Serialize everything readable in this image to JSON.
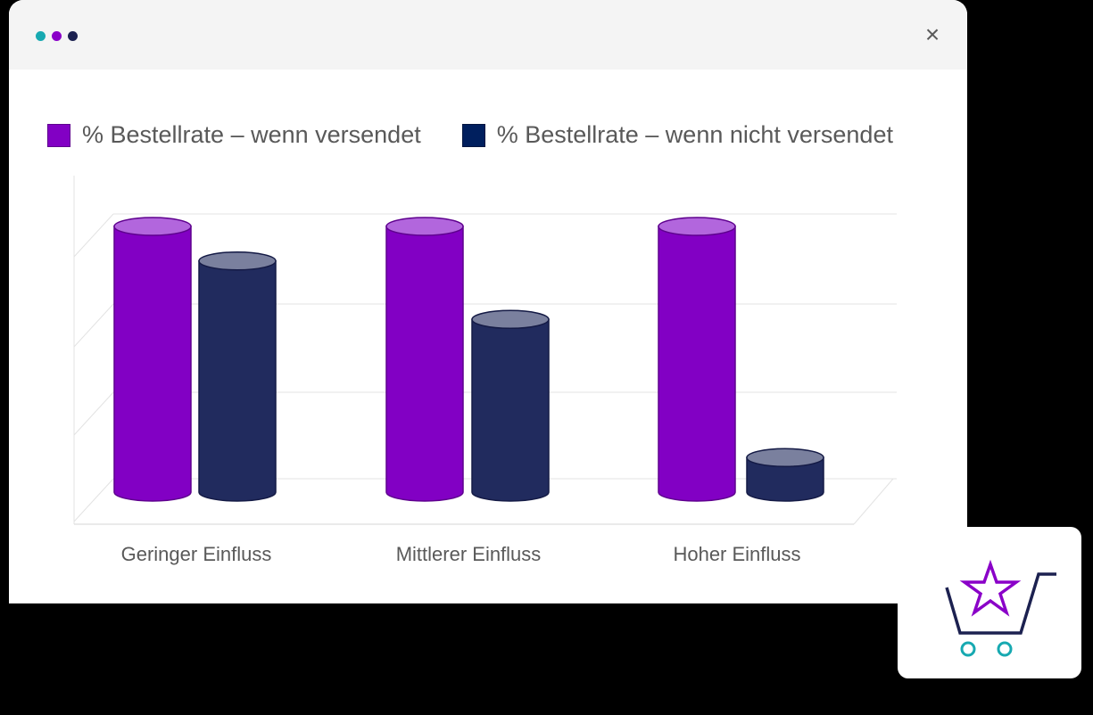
{
  "window": {
    "title_dots": [
      {
        "name": "teal-dot",
        "color": "#17a9b1"
      },
      {
        "name": "purple-dot",
        "color": "#8a00c8"
      },
      {
        "name": "navy-dot",
        "color": "#1c2150"
      }
    ],
    "close_icon": "×"
  },
  "legend": [
    {
      "label": "% Bestellrate – wenn versendet",
      "color": "#8200c4"
    },
    {
      "label": "% Bestellrate – wenn nicht versendet",
      "color": "#001f5e"
    }
  ],
  "chart_data": {
    "type": "bar",
    "style": "3d-cylinder",
    "title": "",
    "xlabel": "",
    "ylabel": "",
    "categories": [
      "Geringer Einfluss",
      "Mittlerer Einfluss",
      "Hoher Einfluss"
    ],
    "series": [
      {
        "name": "% Bestellrate – wenn versendet",
        "color": "#8200c4",
        "top_color": "#b266dd",
        "values": [
          100,
          100,
          100
        ]
      },
      {
        "name": "% Bestellrate – wenn nicht versendet",
        "color": "#212b5e",
        "top_color": "#7a809e",
        "values": [
          87,
          65,
          13
        ]
      }
    ],
    "ylim": [
      0,
      100
    ],
    "yticks_visible": false,
    "grid": true,
    "gridlines": 4,
    "legend_position": "top",
    "note": "No numeric axis labels shown; values are relative heights estimated from gridlines (tallest = 100)."
  },
  "badge": {
    "icon": "shopping-cart-star-icon",
    "colors": {
      "cart": "#1c2150",
      "star": "#8a00c8",
      "wheels": "#17a9b1"
    }
  }
}
